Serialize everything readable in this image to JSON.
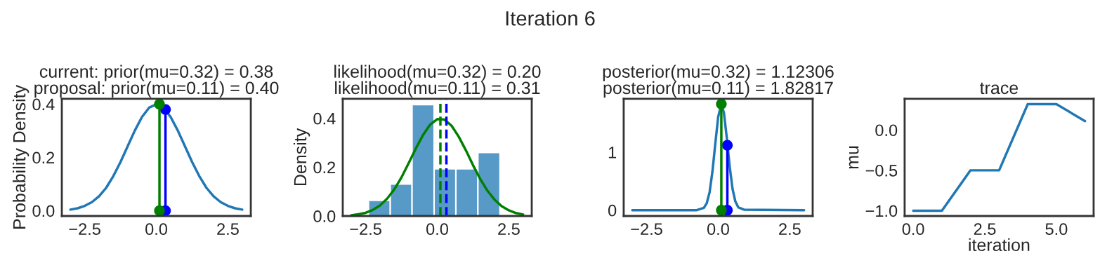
{
  "chart_data": [
    {
      "type": "line",
      "title": "current: prior(mu=0.32) = 0.38\nproposal: prior(mu=0.11) = 0.40",
      "ylabel": "Probability Density",
      "annotations": [
        "Iteration 6"
      ],
      "xlim": [
        -3.3,
        3.3
      ],
      "xticks": [
        {
          "value": -2.5,
          "label": "−2.5"
        },
        {
          "value": 0,
          "label": "0.0"
        },
        {
          "value": 2.5,
          "label": "2.5"
        }
      ],
      "ylim": [
        -0.02,
        0.42
      ],
      "yticks": [
        {
          "value": 0,
          "label": "0.0"
        },
        {
          "value": 0.2,
          "label": "0.2"
        },
        {
          "value": 0.4,
          "label": "0.4"
        }
      ],
      "series": [
        {
          "color": "#1f77b4",
          "x": [
            -3,
            -2.75,
            -2.5,
            -2.25,
            -2,
            -1.75,
            -1.5,
            -1.25,
            -1,
            -0.75,
            -0.5,
            -0.25,
            0,
            0.25,
            0.5,
            0.75,
            1,
            1.25,
            1.5,
            1.75,
            2,
            2.25,
            2.5,
            2.75,
            3
          ],
          "values": [
            0.004,
            0.009,
            0.018,
            0.032,
            0.054,
            0.086,
            0.13,
            0.183,
            0.242,
            0.301,
            0.352,
            0.387,
            0.399,
            0.387,
            0.352,
            0.301,
            0.242,
            0.183,
            0.13,
            0.086,
            0.054,
            0.032,
            0.018,
            0.009,
            0.004
          ]
        },
        {
          "color": "#0000ff",
          "marker": "circle",
          "x": [
            0.32,
            0.32
          ],
          "values": [
            0,
            0.38
          ]
        },
        {
          "color": "#008000",
          "marker": "circle",
          "x": [
            0.11,
            0.11
          ],
          "values": [
            0,
            0.4
          ]
        }
      ]
    },
    {
      "type": "line",
      "title": "likelihood(mu=0.32) = 0.20\nlikelihood(mu=0.11) = 0.31",
      "ylabel": "Density",
      "xlim": [
        -3.3,
        3.3
      ],
      "xticks": [
        {
          "value": -2.5,
          "label": "−2.5"
        },
        {
          "value": 0,
          "label": "0.0"
        },
        {
          "value": 2.5,
          "label": "2.5"
        }
      ],
      "ylim": [
        0,
        0.48
      ],
      "yticks": [
        {
          "value": 0,
          "label": "0.0"
        },
        {
          "value": 0.2,
          "label": "0.2"
        },
        {
          "value": 0.4,
          "label": "0.4"
        }
      ],
      "series": [
        {
          "type": "histogram",
          "color": "#5799c7",
          "bins": [
            -2.4,
            -1.64,
            -0.88,
            -0.11,
            0.65,
            1.42,
            2.19
          ],
          "values": [
            0.064,
            0.131,
            0.456,
            0.193,
            0.193,
            0.26
          ]
        },
        {
          "color": "#008000",
          "x": [
            -3,
            -2.75,
            -2.5,
            -2.25,
            -2,
            -1.75,
            -1.5,
            -1.25,
            -1,
            -0.75,
            -0.5,
            -0.25,
            0,
            0.25,
            0.5,
            0.75,
            1,
            1.25,
            1.5,
            1.75,
            2,
            2.25,
            2.5,
            2.75,
            3
          ],
          "values": [
            0.003,
            0.007,
            0.013,
            0.025,
            0.043,
            0.071,
            0.109,
            0.158,
            0.216,
            0.276,
            0.331,
            0.374,
            0.397,
            0.395,
            0.37,
            0.325,
            0.269,
            0.208,
            0.152,
            0.104,
            0.067,
            0.04,
            0.023,
            0.012,
            0.006
          ]
        }
      ],
      "ref_lines": [
        {
          "axis": "x",
          "value": 0.11,
          "color": "#008000",
          "line_style": "dashed"
        },
        {
          "axis": "x",
          "value": 0.32,
          "color": "#0000ff",
          "line_style": "dashed"
        }
      ]
    },
    {
      "type": "line",
      "title": "posterior(mu=0.32) = 1.12306\nposterior(mu=0.11) = 1.82817",
      "xlim": [
        -3.3,
        3.3
      ],
      "xticks": [
        {
          "value": -2.5,
          "label": "−2.5"
        },
        {
          "value": 0,
          "label": "0.0"
        },
        {
          "value": 2.5,
          "label": "2.5"
        }
      ],
      "ylim": [
        -0.1,
        1.92
      ],
      "yticks": [
        0,
        1
      ],
      "series": [
        {
          "color": "#1f77b4",
          "x": [
            -3,
            -1,
            -0.75,
            -0.5,
            -0.4,
            -0.3,
            -0.2,
            -0.1,
            0,
            0.11,
            0.2,
            0.3,
            0.4,
            0.5,
            0.6,
            0.7,
            0.9,
            3
          ],
          "values": [
            0,
            0,
            0.001,
            0.04,
            0.12,
            0.31,
            0.67,
            1.15,
            1.61,
            1.83,
            1.68,
            1.25,
            0.76,
            0.37,
            0.15,
            0.05,
            0.01,
            0
          ]
        },
        {
          "color": "#0000ff",
          "marker": "circle",
          "x": [
            0.32,
            0.32
          ],
          "values": [
            0,
            1.12
          ]
        },
        {
          "color": "#008000",
          "marker": "circle",
          "x": [
            0.11,
            0.11
          ],
          "values": [
            0,
            1.83
          ]
        }
      ]
    },
    {
      "type": "line",
      "title": "trace",
      "xlabel": "iteration",
      "ylabel": "mu",
      "xlim": [
        -0.3,
        6.3
      ],
      "xticks": [
        {
          "value": 0,
          "label": "0.0"
        },
        {
          "value": 2.5,
          "label": "2.5"
        },
        {
          "value": 5,
          "label": "5.0"
        }
      ],
      "ylim": [
        -1.066,
        0.386
      ],
      "yticks": [
        {
          "value": -1,
          "label": "−1.0"
        },
        {
          "value": -0.5,
          "label": "−0.5"
        },
        {
          "value": 0,
          "label": "0.0"
        }
      ],
      "series": [
        {
          "color": "#1f77b4",
          "x": [
            0,
            1,
            2,
            3,
            4,
            5,
            6
          ],
          "values": [
            -1,
            -1,
            -0.5,
            -0.5,
            0.32,
            0.32,
            0.11
          ]
        }
      ]
    }
  ]
}
